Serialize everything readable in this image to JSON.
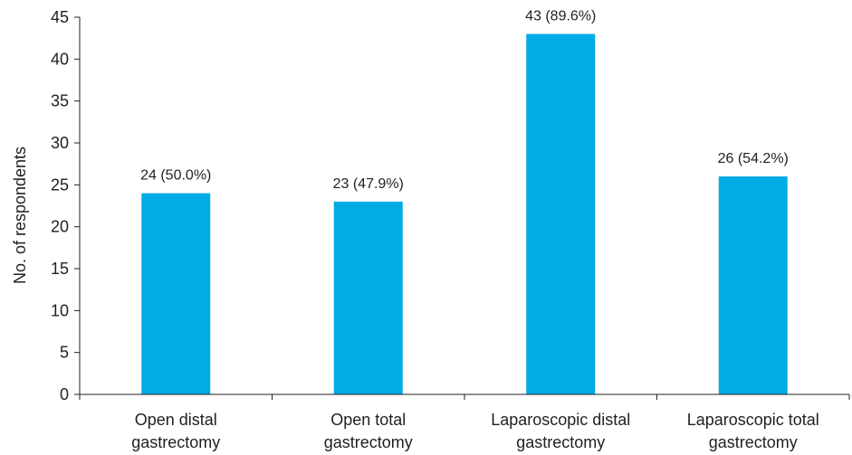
{
  "chart_data": {
    "type": "bar",
    "categories": [
      [
        "Open distal",
        "gastrectomy"
      ],
      [
        "Open total",
        "gastrectomy"
      ],
      [
        "Laparoscopic distal",
        "gastrectomy"
      ],
      [
        "Laparoscopic total",
        "gastrectomy"
      ]
    ],
    "values": [
      24,
      23,
      43,
      26
    ],
    "data_labels": [
      "24 (50.0%)",
      "23 (47.9%)",
      "43 (89.6%)",
      "26 (54.2%)"
    ],
    "ylabel": "No. of respondents",
    "xlabel": "",
    "ylim": [
      0,
      45
    ],
    "yticks": [
      0,
      5,
      10,
      15,
      20,
      25,
      30,
      35,
      40,
      45
    ],
    "grid": false,
    "bar_color": "#00ace6",
    "axis_color": "#231f20"
  }
}
